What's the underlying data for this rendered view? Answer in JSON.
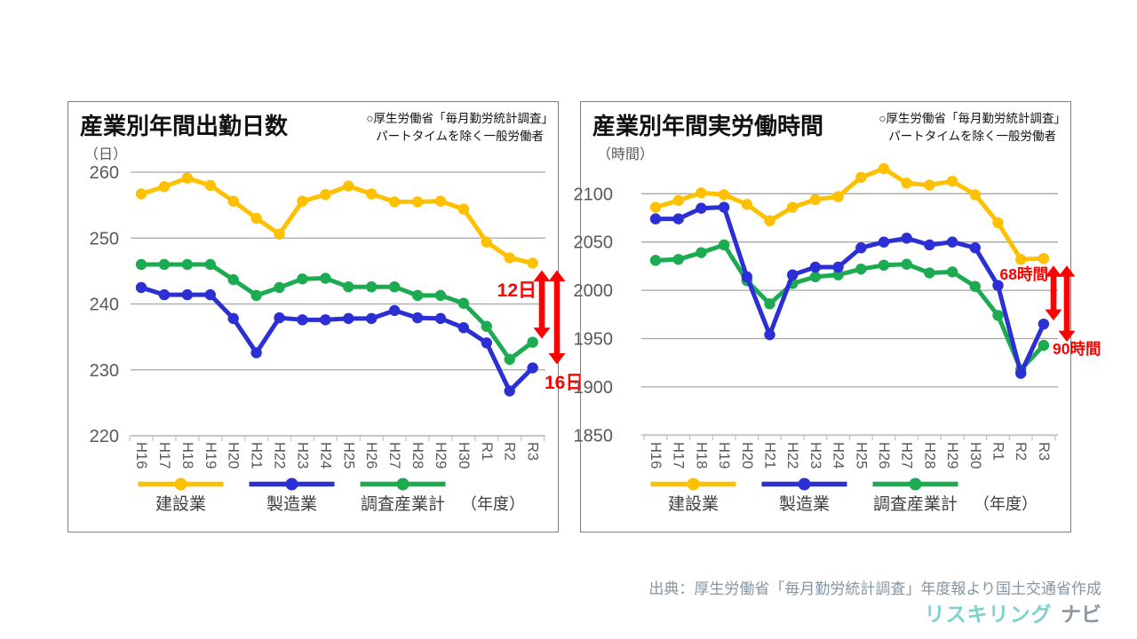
{
  "panels": [
    {
      "title": "産業別年間出勤日数",
      "note_line1": "○厚生労働省「毎月勤労統計調査」",
      "note_line2": "パートタイムを除く一般労働者",
      "unit_label": "（日）",
      "year_label": "（年度）",
      "annotations": [
        {
          "label": "12日",
          "top_series": 0,
          "bottom_series": 2
        },
        {
          "label": "16日",
          "top_series": 0,
          "bottom_series": 1
        }
      ]
    },
    {
      "title": "産業別年間実労働時間",
      "note_line1": "○厚生労働省「毎月勤労統計調査」",
      "note_line2": "パートタイムを除く一般労働者",
      "unit_label": "（時間）",
      "year_label": "（年度）",
      "annotations": [
        {
          "label": "68時間",
          "top_series": 0,
          "bottom_series": 1
        },
        {
          "label": "90時間",
          "top_series": 0,
          "bottom_series": 2
        }
      ]
    }
  ],
  "chart_data": [
    {
      "type": "line",
      "title": "産業別年間出勤日数",
      "ylabel": "日",
      "xlabel": "年度",
      "categories": [
        "H16",
        "H17",
        "H18",
        "H19",
        "H20",
        "H21",
        "H22",
        "H23",
        "H24",
        "H25",
        "H26",
        "H27",
        "H28",
        "H29",
        "H30",
        "R1",
        "R2",
        "R3"
      ],
      "series": [
        {
          "name": "建設業",
          "color": "#FFC000",
          "values": [
            256.7,
            257.8,
            259.1,
            258.0,
            255.6,
            253.0,
            250.6,
            255.6,
            256.6,
            257.9,
            256.7,
            255.5,
            255.5,
            255.6,
            254.4,
            249.4,
            247.0,
            246.2
          ]
        },
        {
          "name": "製造業",
          "color": "#2B2FD4",
          "values": [
            242.5,
            241.4,
            241.4,
            241.4,
            237.8,
            232.6,
            237.9,
            237.6,
            237.6,
            237.8,
            237.8,
            239.0,
            237.9,
            237.8,
            236.4,
            234.1,
            226.8,
            230.3
          ]
        },
        {
          "name": "調査産業計",
          "color": "#1CAB50",
          "values": [
            246.0,
            246.0,
            246.0,
            246.0,
            243.7,
            241.3,
            242.5,
            243.8,
            243.9,
            242.6,
            242.6,
            242.6,
            241.3,
            241.3,
            240.1,
            236.6,
            231.6,
            234.2
          ]
        }
      ],
      "ylim": [
        220,
        262
      ],
      "yticks": [
        260,
        250,
        240,
        230,
        220
      ],
      "grid": true,
      "legend_position": "bottom"
    },
    {
      "type": "line",
      "title": "産業別年間実労働時間",
      "ylabel": "時間",
      "xlabel": "年度",
      "categories": [
        "H16",
        "H17",
        "H18",
        "H19",
        "H20",
        "H21",
        "H22",
        "H23",
        "H24",
        "H25",
        "H26",
        "H27",
        "H28",
        "H29",
        "H30",
        "R1",
        "R2",
        "R3"
      ],
      "series": [
        {
          "name": "建設業",
          "color": "#FFC000",
          "values": [
            2086,
            2093,
            2101,
            2099,
            2089,
            2072,
            2086,
            2094,
            2097,
            2117,
            2126,
            2111,
            2109,
            2113,
            2099,
            2070,
            2032,
            2033
          ]
        },
        {
          "name": "製造業",
          "color": "#2B2FD4",
          "values": [
            2074,
            2074,
            2085,
            2086,
            2014,
            1954,
            2016,
            2024,
            2024,
            2044,
            2050,
            2054,
            2047,
            2050,
            2044,
            2005,
            1914,
            1965
          ]
        },
        {
          "name": "調査産業計",
          "color": "#1CAB50",
          "values": [
            2031,
            2032,
            2039,
            2047,
            2010,
            1986,
            2007,
            2014,
            2016,
            2022,
            2026,
            2027,
            2018,
            2019,
            2004,
            1974,
            1918,
            1943
          ]
        }
      ],
      "ylim": [
        1850,
        2140
      ],
      "yticks": [
        2100,
        2050,
        2000,
        1950,
        1900,
        1850
      ],
      "grid": true,
      "legend_position": "bottom"
    }
  ],
  "colors": {
    "construction": "#FFC000",
    "manufacturing": "#2B2FD4",
    "all_industries": "#1CAB50",
    "annotation_red": "#FF0000",
    "gridline": "#A6A6A6",
    "axis_line": "#C6C6C6",
    "tick_label": "#595959",
    "legend_text": "#3F3F3F"
  },
  "footer": {
    "source": "出典：厚生労働省「毎月勤労統計調査」年度報より国土交通省作成",
    "logo_main": "リスキリング",
    "logo_sub": "ナビ"
  }
}
